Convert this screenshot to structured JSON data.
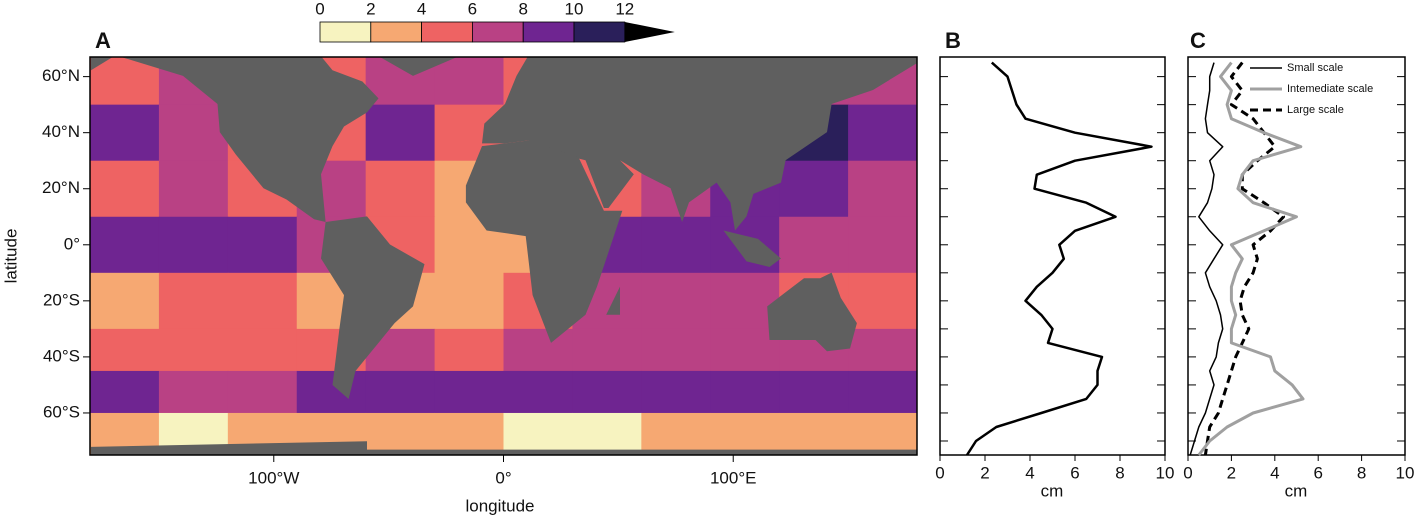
{
  "chart_data": [
    {
      "type": "map",
      "label": "A",
      "xlabel": "longitude",
      "ylabel": "latitude",
      "xlim": [
        -180,
        180
      ],
      "ylim": [
        -75,
        67
      ],
      "xticks": [
        {
          "value": -100,
          "label": "100°W"
        },
        {
          "value": 0,
          "label": "0°"
        },
        {
          "value": 100,
          "label": "100°E"
        }
      ],
      "yticks": [
        {
          "value": 60,
          "label": "60°N"
        },
        {
          "value": 40,
          "label": "40°N"
        },
        {
          "value": 20,
          "label": "20°N"
        },
        {
          "value": 0,
          "label": "0°"
        },
        {
          "value": -20,
          "label": "20°S"
        },
        {
          "value": -40,
          "label": "40°S"
        },
        {
          "value": -60,
          "label": "60°S"
        }
      ],
      "colorbar": {
        "ticks": [
          0,
          2,
          4,
          6,
          8,
          10,
          12
        ],
        "colors": [
          "#f7f3c0",
          "#f6a872",
          "#ee6363",
          "#b94184",
          "#6f2591",
          "#2a1f5a"
        ],
        "extend_color": "#000000"
      },
      "land_color": "#5f5f5f",
      "field": {
        "lon_edges": [
          -180,
          -150,
          -120,
          -90,
          -60,
          -30,
          0,
          30,
          60,
          90,
          120,
          150,
          180
        ],
        "lat_edges": [
          67,
          50,
          30,
          10,
          -10,
          -30,
          -45,
          -60,
          -75
        ],
        "values": [
          [
            5,
            6,
            5,
            4,
            7,
            6,
            4,
            4,
            4,
            4,
            6,
            6
          ],
          [
            8,
            6,
            5,
            4,
            8,
            5,
            5,
            4,
            4,
            5,
            10,
            9
          ],
          [
            5,
            6,
            5,
            7,
            5,
            3,
            3,
            5,
            7,
            8,
            8,
            6
          ],
          [
            8,
            8,
            8,
            7,
            4,
            3,
            3,
            8,
            8,
            9,
            7,
            7
          ],
          [
            3,
            4,
            4,
            3,
            3,
            3,
            4,
            7,
            6,
            6,
            5,
            4
          ],
          [
            5,
            5,
            4,
            4,
            6,
            4,
            6,
            7,
            7,
            7,
            6,
            6
          ],
          [
            8,
            7,
            7,
            9,
            9,
            8,
            8,
            9,
            9,
            9,
            8,
            9
          ],
          [
            2,
            1,
            2,
            3,
            2,
            2,
            1,
            1,
            2,
            3,
            2,
            2
          ]
        ]
      }
    },
    {
      "type": "line",
      "label": "B",
      "xlabel": "cm",
      "xlim": [
        0,
        10
      ],
      "xticks": [
        0,
        2,
        4,
        6,
        8,
        10
      ],
      "ylim": [
        -75,
        67
      ],
      "yticks": [
        60,
        50,
        40,
        30,
        20,
        10,
        0,
        -10,
        -20,
        -30,
        -40,
        -50,
        -60,
        -70
      ],
      "y": [
        65,
        60,
        55,
        50,
        45,
        40,
        35,
        30,
        25,
        20,
        15,
        10,
        5,
        0,
        -5,
        -10,
        -15,
        -20,
        -25,
        -30,
        -35,
        -40,
        -45,
        -50,
        -55,
        -60,
        -65,
        -70,
        -75
      ],
      "series": [
        {
          "color": "#000000",
          "values": [
            2.3,
            3.0,
            3.2,
            3.4,
            3.8,
            6.0,
            9.4,
            6.0,
            4.3,
            4.2,
            6.5,
            7.8,
            6.0,
            5.3,
            5.5,
            5.0,
            4.3,
            3.8,
            4.5,
            5.0,
            4.8,
            7.2,
            7.0,
            7.0,
            6.5,
            4.5,
            2.5,
            1.6,
            1.2
          ]
        }
      ]
    },
    {
      "type": "line",
      "label": "C",
      "xlabel": "cm",
      "xlim": [
        0,
        10
      ],
      "xticks": [
        0,
        2,
        4,
        6,
        8,
        10
      ],
      "ylim": [
        -75,
        67
      ],
      "yticks": [
        60,
        50,
        40,
        30,
        20,
        10,
        0,
        -10,
        -20,
        -30,
        -40,
        -50,
        -60,
        -70
      ],
      "y": [
        65,
        60,
        55,
        50,
        45,
        40,
        35,
        30,
        25,
        20,
        15,
        10,
        5,
        0,
        -5,
        -10,
        -15,
        -20,
        -25,
        -30,
        -35,
        -40,
        -45,
        -50,
        -55,
        -60,
        -65,
        -70,
        -75
      ],
      "series": [
        {
          "name": "Small scale",
          "color": "#000000",
          "dash": "none",
          "width": 1.5,
          "values": [
            1.2,
            1.0,
            1.0,
            0.9,
            0.8,
            0.9,
            1.6,
            1.0,
            1.2,
            1.1,
            0.9,
            0.5,
            1.0,
            1.6,
            1.2,
            0.8,
            1.0,
            1.3,
            1.5,
            1.6,
            1.4,
            1.3,
            1.0,
            1.2,
            1.0,
            0.8,
            0.5,
            0.3,
            0.1
          ]
        },
        {
          "name": "Intemediate scale",
          "color": "#a0a0a0",
          "dash": "none",
          "width": 3,
          "values": [
            2.0,
            1.5,
            2.0,
            1.8,
            2.0,
            3.5,
            5.2,
            3.0,
            2.5,
            2.3,
            3.0,
            5.0,
            3.5,
            2.0,
            2.5,
            2.2,
            2.0,
            2.0,
            2.2,
            2.0,
            2.0,
            3.8,
            4.0,
            4.8,
            5.3,
            3.0,
            1.8,
            1.0,
            0.5
          ]
        },
        {
          "name": "Large scale",
          "color": "#000000",
          "dash": "8 5",
          "width": 3,
          "values": [
            2.5,
            2.0,
            2.5,
            2.0,
            3.0,
            3.5,
            4.0,
            3.2,
            2.5,
            2.5,
            3.5,
            4.4,
            3.8,
            3.0,
            3.2,
            3.0,
            2.6,
            2.4,
            2.5,
            2.8,
            2.5,
            2.2,
            2.0,
            1.8,
            1.6,
            1.4,
            1.0,
            0.9,
            0.8
          ]
        }
      ]
    }
  ]
}
